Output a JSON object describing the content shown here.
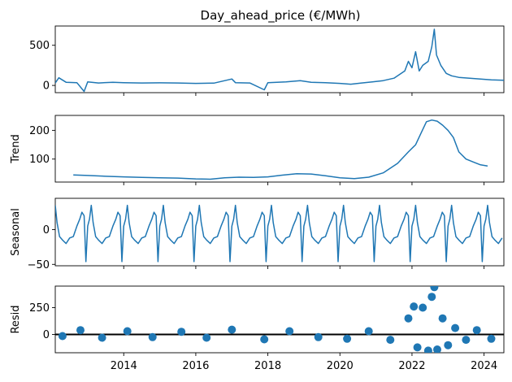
{
  "chart_data": {
    "type": "line",
    "title": "Day_ahead_price (€/MWh)",
    "xlim": [
      2012.1,
      2024.55
    ],
    "x_ticks": [
      2014,
      2016,
      2018,
      2020,
      2022,
      2024
    ],
    "x_tick_labels": [
      "2014",
      "2016",
      "2018",
      "2020",
      "2022",
      "2024"
    ],
    "series_color": "#1f77b4",
    "zero_line_color": "#000000",
    "panels": [
      {
        "name": "observed",
        "ylabel": "",
        "ylim": [
          -90,
          740
        ],
        "yticks": [
          0,
          500
        ],
        "ytick_labels": [
          "0",
          "500"
        ],
        "kind": "line",
        "series": [
          {
            "x": 2012.1,
            "y": 30
          },
          {
            "x": 2012.2,
            "y": 95
          },
          {
            "x": 2012.4,
            "y": 40
          },
          {
            "x": 2012.7,
            "y": 35
          },
          {
            "x": 2012.9,
            "y": -75
          },
          {
            "x": 2013.0,
            "y": 45
          },
          {
            "x": 2013.3,
            "y": 30
          },
          {
            "x": 2013.7,
            "y": 40
          },
          {
            "x": 2014.0,
            "y": 35
          },
          {
            "x": 2014.5,
            "y": 30
          },
          {
            "x": 2015.0,
            "y": 32
          },
          {
            "x": 2015.5,
            "y": 30
          },
          {
            "x": 2016.0,
            "y": 25
          },
          {
            "x": 2016.5,
            "y": 28
          },
          {
            "x": 2017.0,
            "y": 80
          },
          {
            "x": 2017.1,
            "y": 35
          },
          {
            "x": 2017.5,
            "y": 30
          },
          {
            "x": 2017.9,
            "y": -55
          },
          {
            "x": 2018.0,
            "y": 35
          },
          {
            "x": 2018.5,
            "y": 45
          },
          {
            "x": 2018.9,
            "y": 60
          },
          {
            "x": 2019.2,
            "y": 40
          },
          {
            "x": 2019.6,
            "y": 35
          },
          {
            "x": 2020.0,
            "y": 25
          },
          {
            "x": 2020.3,
            "y": 15
          },
          {
            "x": 2020.6,
            "y": 30
          },
          {
            "x": 2020.9,
            "y": 45
          },
          {
            "x": 2021.2,
            "y": 60
          },
          {
            "x": 2021.5,
            "y": 90
          },
          {
            "x": 2021.8,
            "y": 180
          },
          {
            "x": 2021.9,
            "y": 300
          },
          {
            "x": 2022.0,
            "y": 220
          },
          {
            "x": 2022.1,
            "y": 420
          },
          {
            "x": 2022.2,
            "y": 180
          },
          {
            "x": 2022.3,
            "y": 250
          },
          {
            "x": 2022.45,
            "y": 300
          },
          {
            "x": 2022.55,
            "y": 480
          },
          {
            "x": 2022.62,
            "y": 700
          },
          {
            "x": 2022.68,
            "y": 380
          },
          {
            "x": 2022.8,
            "y": 250
          },
          {
            "x": 2022.95,
            "y": 150
          },
          {
            "x": 2023.1,
            "y": 120
          },
          {
            "x": 2023.3,
            "y": 100
          },
          {
            "x": 2023.6,
            "y": 90
          },
          {
            "x": 2023.9,
            "y": 80
          },
          {
            "x": 2024.2,
            "y": 70
          },
          {
            "x": 2024.55,
            "y": 65
          }
        ]
      },
      {
        "name": "trend",
        "ylabel": "Trend",
        "ylim": [
          20,
          252
        ],
        "yticks": [
          100,
          200
        ],
        "ytick_labels": [
          "100",
          "200"
        ],
        "kind": "line",
        "series": [
          {
            "x": 2012.6,
            "y": 45
          },
          {
            "x": 2013.0,
            "y": 43
          },
          {
            "x": 2013.5,
            "y": 40
          },
          {
            "x": 2014.0,
            "y": 38
          },
          {
            "x": 2014.5,
            "y": 36
          },
          {
            "x": 2015.0,
            "y": 35
          },
          {
            "x": 2015.5,
            "y": 34
          },
          {
            "x": 2016.0,
            "y": 31
          },
          {
            "x": 2016.4,
            "y": 30
          },
          {
            "x": 2016.8,
            "y": 35
          },
          {
            "x": 2017.2,
            "y": 37
          },
          {
            "x": 2017.6,
            "y": 36
          },
          {
            "x": 2018.0,
            "y": 38
          },
          {
            "x": 2018.4,
            "y": 44
          },
          {
            "x": 2018.8,
            "y": 49
          },
          {
            "x": 2019.2,
            "y": 48
          },
          {
            "x": 2019.6,
            "y": 42
          },
          {
            "x": 2020.0,
            "y": 35
          },
          {
            "x": 2020.4,
            "y": 32
          },
          {
            "x": 2020.8,
            "y": 37
          },
          {
            "x": 2021.2,
            "y": 52
          },
          {
            "x": 2021.6,
            "y": 85
          },
          {
            "x": 2021.9,
            "y": 125
          },
          {
            "x": 2022.1,
            "y": 150
          },
          {
            "x": 2022.25,
            "y": 190
          },
          {
            "x": 2022.4,
            "y": 230
          },
          {
            "x": 2022.55,
            "y": 236
          },
          {
            "x": 2022.7,
            "y": 232
          },
          {
            "x": 2022.85,
            "y": 218
          },
          {
            "x": 2023.0,
            "y": 200
          },
          {
            "x": 2023.15,
            "y": 175
          },
          {
            "x": 2023.3,
            "y": 125
          },
          {
            "x": 2023.5,
            "y": 100
          },
          {
            "x": 2023.7,
            "y": 90
          },
          {
            "x": 2023.9,
            "y": 80
          },
          {
            "x": 2024.1,
            "y": 76
          }
        ]
      },
      {
        "name": "seasonal",
        "ylabel": "Seasonal",
        "ylim": [
          -52,
          45
        ],
        "yticks": [
          -50,
          0
        ],
        "ytick_labels": [
          "−50",
          "0"
        ],
        "kind": "seasonal",
        "period_start": 2012.1,
        "period_end": 2024.55,
        "cycle": [
          {
            "p": 0.0,
            "v": 5
          },
          {
            "p": 0.05,
            "v": 15
          },
          {
            "p": 0.1,
            "v": 35
          },
          {
            "p": 0.15,
            "v": 10
          },
          {
            "p": 0.22,
            "v": -10
          },
          {
            "p": 0.3,
            "v": -15
          },
          {
            "p": 0.4,
            "v": -20
          },
          {
            "p": 0.5,
            "v": -12
          },
          {
            "p": 0.6,
            "v": -10
          },
          {
            "p": 0.7,
            "v": 5
          },
          {
            "p": 0.78,
            "v": 15
          },
          {
            "p": 0.84,
            "v": 25
          },
          {
            "p": 0.9,
            "v": 20
          },
          {
            "p": 0.95,
            "v": -46
          },
          {
            "p": 1.0,
            "v": 5
          }
        ]
      },
      {
        "name": "resid",
        "ylabel": "Resid",
        "ylim": [
          -170,
          450
        ],
        "yticks": [
          0,
          250
        ],
        "ytick_labels": [
          "0",
          "250"
        ],
        "kind": "scatter",
        "zero_line": true,
        "points": [
          {
            "x": 2012.3,
            "y": -15
          },
          {
            "x": 2012.8,
            "y": 40
          },
          {
            "x": 2013.4,
            "y": -30
          },
          {
            "x": 2014.1,
            "y": 30
          },
          {
            "x": 2014.8,
            "y": -25
          },
          {
            "x": 2015.6,
            "y": 25
          },
          {
            "x": 2016.3,
            "y": -30
          },
          {
            "x": 2017.0,
            "y": 45
          },
          {
            "x": 2017.9,
            "y": -45
          },
          {
            "x": 2018.6,
            "y": 30
          },
          {
            "x": 2019.4,
            "y": -25
          },
          {
            "x": 2020.2,
            "y": -40
          },
          {
            "x": 2020.8,
            "y": 30
          },
          {
            "x": 2021.4,
            "y": -50
          },
          {
            "x": 2021.9,
            "y": 150
          },
          {
            "x": 2022.05,
            "y": 260
          },
          {
            "x": 2022.15,
            "y": -120
          },
          {
            "x": 2022.3,
            "y": 250
          },
          {
            "x": 2022.45,
            "y": -150
          },
          {
            "x": 2022.55,
            "y": 350
          },
          {
            "x": 2022.62,
            "y": 440
          },
          {
            "x": 2022.7,
            "y": -140
          },
          {
            "x": 2022.85,
            "y": 150
          },
          {
            "x": 2023.0,
            "y": -100
          },
          {
            "x": 2023.2,
            "y": 60
          },
          {
            "x": 2023.5,
            "y": -50
          },
          {
            "x": 2023.8,
            "y": 40
          },
          {
            "x": 2024.2,
            "y": -40
          }
        ]
      }
    ]
  }
}
